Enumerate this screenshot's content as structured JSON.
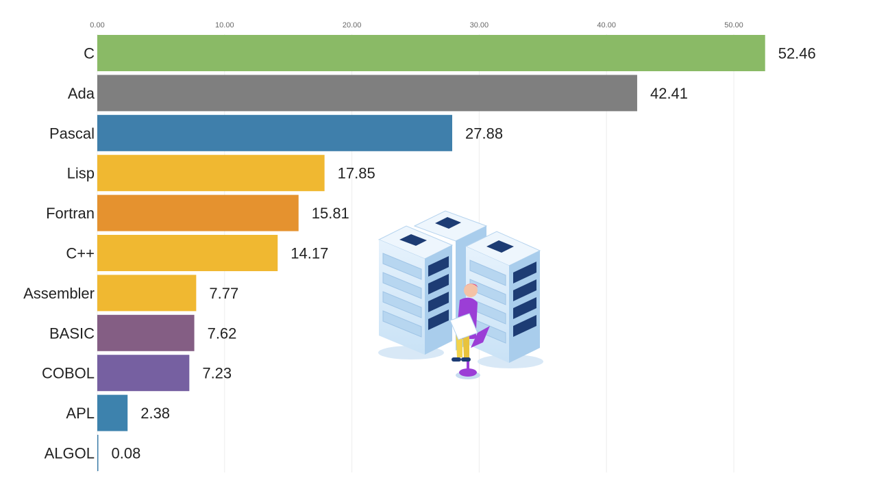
{
  "chart_data": {
    "type": "bar",
    "orientation": "horizontal",
    "categories": [
      "C",
      "Ada",
      "Pascal",
      "Lisp",
      "Fortran",
      "C++",
      "Assembler",
      "BASIC",
      "COBOL",
      "APL",
      "ALGOL"
    ],
    "values": [
      52.46,
      42.41,
      27.88,
      17.85,
      15.81,
      14.17,
      7.77,
      7.62,
      7.23,
      2.38,
      0.08
    ],
    "value_labels": [
      "52.46",
      "42.41",
      "27.88",
      "17.85",
      "15.81",
      "14.17",
      "7.77",
      "7.62",
      "7.23",
      "2.38",
      "0.08"
    ],
    "colors": [
      "#8aba66",
      "#7f7f7f",
      "#3f7fab",
      "#f0b831",
      "#e5922f",
      "#f0b831",
      "#f0b831",
      "#845e84",
      "#7660a1",
      "#3d82ad",
      "#3f7fab"
    ],
    "x_ticks": [
      "0.00",
      "10.00",
      "20.00",
      "30.00",
      "40.00",
      "50.00"
    ],
    "xlim": [
      0,
      55
    ],
    "title": "",
    "xlabel": "",
    "ylabel": "",
    "grid": "vertical",
    "axis_position": "top",
    "legend": "none"
  },
  "illustration": {
    "icon": "server-racks-with-person-on-laptop-icon",
    "colors": {
      "rack": "#dfeefa",
      "rack_side": "#a9cdec",
      "slot": "#1d3c74",
      "shirt": "#9b3ed6",
      "pants": "#f2d34b",
      "hair": "#e8427a"
    }
  }
}
